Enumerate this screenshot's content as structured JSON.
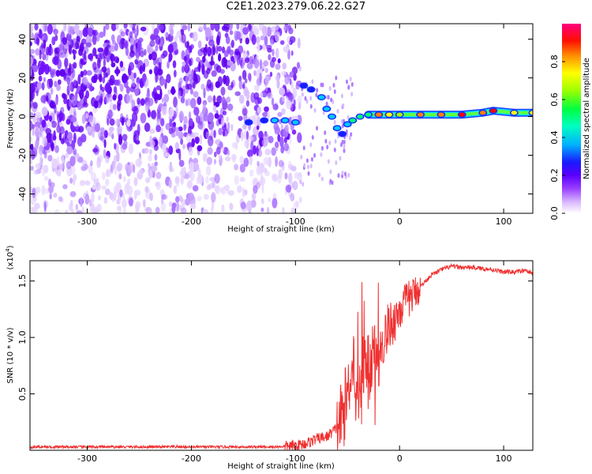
{
  "title": "C2E1.2023.279.06.22.G27",
  "chart_data": [
    {
      "type": "heatmap",
      "xlabel": "Height of straight line (km)",
      "ylabel": "Frequency (Hz)",
      "xlim": [
        -355,
        128
      ],
      "ylim": [
        -50,
        48
      ],
      "xticks": [
        -300,
        -200,
        -100,
        0,
        100
      ],
      "yticks": [
        -40,
        -20,
        0,
        20,
        40
      ],
      "grid": false,
      "colorbar": {
        "label": "Normalized spectral amplitude",
        "range": [
          0,
          1
        ],
        "ticks": [
          0.0,
          0.2,
          0.4,
          0.6,
          0.8
        ],
        "colors": [
          "#ffffff",
          "#d9b8ff",
          "#7a00ff",
          "#1a1aff",
          "#00c8ff",
          "#00ff80",
          "#a0ff00",
          "#ffff00",
          "#ff8000",
          "#ff0000",
          "#ff0080"
        ]
      },
      "signal_track": [
        {
          "x": -145,
          "y": -3,
          "amp": 0.3
        },
        {
          "x": -130,
          "y": -2,
          "amp": 0.35
        },
        {
          "x": -120,
          "y": -2,
          "amp": 0.4
        },
        {
          "x": -110,
          "y": -2,
          "amp": 0.42
        },
        {
          "x": -100,
          "y": -3,
          "amp": 0.4
        },
        {
          "x": -92,
          "y": 16,
          "amp": 0.38
        },
        {
          "x": -85,
          "y": 14,
          "amp": 0.35
        },
        {
          "x": -75,
          "y": 10,
          "amp": 0.4
        },
        {
          "x": -70,
          "y": 4,
          "amp": 0.45
        },
        {
          "x": -65,
          "y": 0,
          "amp": 0.42
        },
        {
          "x": -60,
          "y": -6,
          "amp": 0.4
        },
        {
          "x": -55,
          "y": -9,
          "amp": 0.38
        },
        {
          "x": -50,
          "y": -4,
          "amp": 0.45
        },
        {
          "x": -45,
          "y": -2,
          "amp": 0.5
        },
        {
          "x": -38,
          "y": 0,
          "amp": 0.5
        },
        {
          "x": -30,
          "y": 1,
          "amp": 0.6
        },
        {
          "x": -20,
          "y": 1,
          "amp": 0.85
        },
        {
          "x": -10,
          "y": 1,
          "amp": 0.8
        },
        {
          "x": 0,
          "y": 1,
          "amp": 0.7
        },
        {
          "x": 20,
          "y": 1,
          "amp": 0.85
        },
        {
          "x": 40,
          "y": 1,
          "amp": 0.88
        },
        {
          "x": 60,
          "y": 1,
          "amp": 0.9
        },
        {
          "x": 80,
          "y": 2,
          "amp": 0.85
        },
        {
          "x": 90,
          "y": 3,
          "amp": 0.95
        },
        {
          "x": 110,
          "y": 2,
          "amp": 0.8
        },
        {
          "x": 128,
          "y": 2,
          "amp": 0.75
        }
      ]
    },
    {
      "type": "line",
      "xlabel": "Height of straight line (km)",
      "ylabel": "SNR (10 * v/v)",
      "ylabel_scale": "(x10",
      "ylabel_scale_exp": "4",
      "ylabel_scale_close": ")",
      "xlim": [
        -355,
        128
      ],
      "ylim": [
        0,
        1.68
      ],
      "xticks": [
        -300,
        -200,
        -100,
        0,
        100
      ],
      "yticks": [
        0.5,
        1.0,
        1.5
      ],
      "ytick_labels": [
        "0.5",
        "1.0",
        "1.5"
      ],
      "grid": false,
      "series": [
        {
          "color": "#f03030",
          "x": [
            -355,
            -300,
            -250,
            -200,
            -150,
            -120,
            -100,
            -90,
            -80,
            -70,
            -60,
            -55,
            -50,
            -45,
            -40,
            -35,
            -30,
            -25,
            -20,
            -15,
            -10,
            -5,
            0,
            5,
            10,
            20,
            30,
            40,
            50,
            60,
            70,
            80,
            90,
            100,
            110,
            120,
            128
          ],
          "y": [
            0.03,
            0.03,
            0.03,
            0.03,
            0.03,
            0.03,
            0.04,
            0.06,
            0.1,
            0.12,
            0.2,
            0.3,
            0.5,
            0.9,
            0.4,
            0.8,
            0.6,
            0.9,
            0.8,
            1.0,
            1.1,
            1.15,
            1.25,
            1.3,
            1.35,
            1.45,
            1.55,
            1.6,
            1.63,
            1.62,
            1.62,
            1.61,
            1.6,
            1.58,
            1.58,
            1.59,
            1.57
          ]
        }
      ]
    }
  ]
}
